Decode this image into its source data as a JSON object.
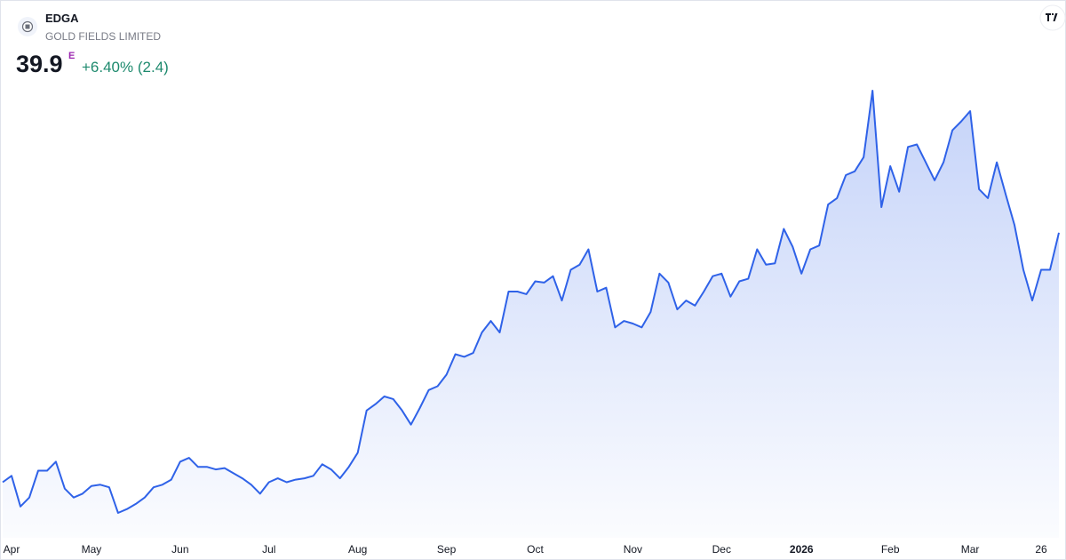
{
  "chart_data": {
    "type": "area",
    "symbol": "EDGA",
    "name": "GOLD FIELDS LIMITED",
    "price": 39.9,
    "price_flag": "E",
    "change": "+6.40% (2.4)",
    "color": "#2f62e8",
    "values": [
      20.4,
      20.9,
      18.5,
      19.2,
      21.3,
      21.3,
      22.0,
      19.9,
      19.2,
      19.5,
      20.1,
      20.2,
      20.0,
      18.0,
      18.3,
      18.7,
      19.2,
      20.0,
      20.2,
      20.6,
      22.0,
      22.3,
      21.6,
      21.6,
      21.4,
      21.5,
      21.1,
      20.7,
      20.2,
      19.5,
      20.4,
      20.7,
      20.4,
      20.6,
      20.7,
      20.9,
      21.8,
      21.4,
      20.7,
      21.6,
      22.7,
      26.0,
      26.5,
      27.1,
      26.9,
      26.0,
      24.9,
      26.2,
      27.6,
      27.9,
      28.8,
      30.4,
      30.2,
      30.5,
      32.1,
      33.0,
      32.1,
      35.3,
      35.3,
      35.1,
      36.1,
      36.0,
      36.5,
      34.6,
      37.0,
      37.4,
      38.6,
      35.3,
      35.6,
      32.5,
      33.0,
      32.8,
      32.5,
      33.7,
      36.7,
      36.0,
      33.9,
      34.6,
      34.2,
      35.3,
      36.5,
      36.7,
      34.9,
      36.1,
      36.3,
      38.6,
      37.4,
      37.5,
      40.2,
      38.8,
      36.7,
      38.6,
      38.9,
      42.1,
      42.6,
      44.4,
      44.7,
      45.8,
      51.0,
      41.9,
      45.1,
      43.1,
      46.6,
      46.8,
      45.4,
      44.0,
      45.4,
      47.9,
      48.6,
      49.4,
      43.3,
      42.6,
      45.4,
      42.9,
      40.5,
      37.0,
      34.6,
      37.0,
      37.0,
      39.9
    ],
    "xticks": [
      {
        "value": 1,
        "label": "Apr"
      },
      {
        "value": 10,
        "label": "May"
      },
      {
        "value": 20,
        "label": "Jun"
      },
      {
        "value": 30,
        "label": "Jul"
      },
      {
        "value": 40,
        "label": "Aug"
      },
      {
        "value": 50,
        "label": "Sep"
      },
      {
        "value": 60,
        "label": "Oct"
      },
      {
        "value": 71,
        "label": "Nov"
      },
      {
        "value": 81,
        "label": "Dec"
      },
      {
        "value": 90,
        "label": "2026"
      },
      {
        "value": 100,
        "label": "Feb"
      },
      {
        "value": 109,
        "label": "Mar"
      },
      {
        "value": 117,
        "label": "26"
      }
    ]
  }
}
